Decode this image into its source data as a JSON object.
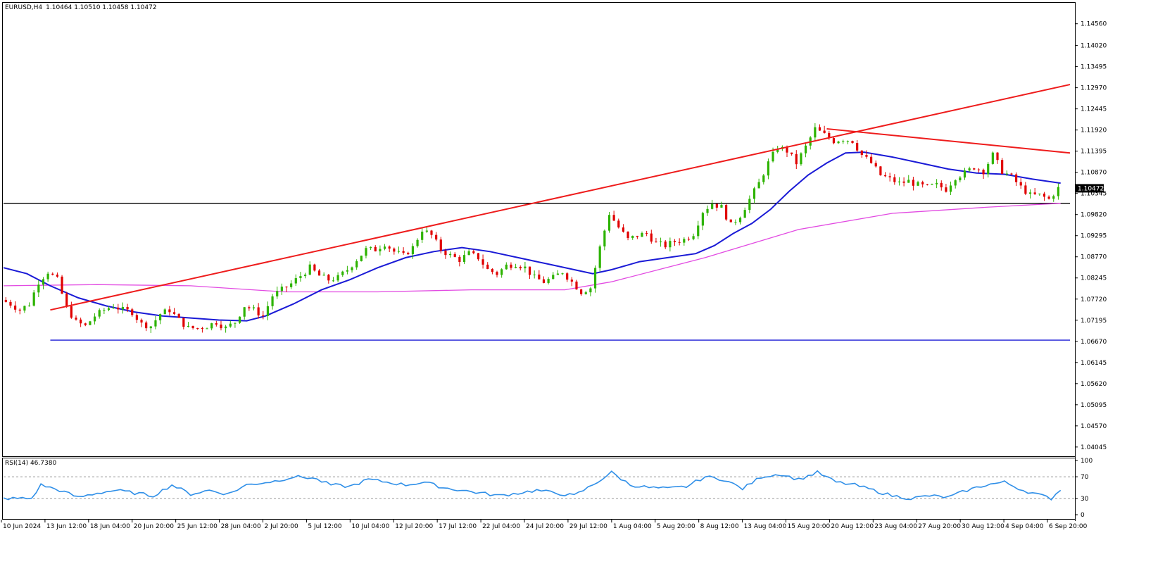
{
  "header": {
    "symbol_timeframe": "EURUSD,H4",
    "ohlc": "1.10464 1.10510 1.10458 1.10472"
  },
  "rsi_header": "RSI(14) 46.7380",
  "colors": {
    "bull": "#2db300",
    "bear": "#e00000",
    "ma_fast": "#1a1ad6",
    "ma_slow": "#e24be2",
    "trend": "#ee1c1c",
    "support": "#1a1ad6",
    "horizontal": "#000000",
    "rsi": "#2f8fe8",
    "price_tag_bg": "#000000"
  },
  "chart_data": [
    {
      "type": "candlestick",
      "name": "main",
      "symbol": "EURUSD",
      "timeframe": "H4",
      "ylim": [
        1.0385,
        1.1487
      ],
      "y_ticks": [
        "1.14560",
        "1.14020",
        "1.13495",
        "1.12970",
        "1.12445",
        "1.11920",
        "1.11395",
        "1.10870",
        "1.10345",
        "1.09820",
        "1.09295",
        "1.08770",
        "1.08245",
        "1.07720",
        "1.07195",
        "1.06670",
        "1.06145",
        "1.05620",
        "1.05095",
        "1.04570",
        "1.04045"
      ],
      "current_price": "1.10472",
      "x_ticks": [
        "10 Jun 2024",
        "13 Jun 12:00",
        "18 Jun 04:00",
        "20 Jun 20:00",
        "25 Jun 12:00",
        "28 Jun 04:00",
        "2 Jul 20:00",
        "5 Jul 12:00",
        "10 Jul 04:00",
        "12 Jul 20:00",
        "17 Jul 12:00",
        "22 Jul 04:00",
        "24 Jul 20:00",
        "29 Jul 12:00",
        "1 Aug 04:00",
        "5 Aug 20:00",
        "8 Aug 12:00",
        "13 Aug 04:00",
        "15 Aug 20:00",
        "20 Aug 12:00",
        "23 Aug 04:00",
        "27 Aug 20:00",
        "30 Aug 12:00",
        "4 Sep 04:00",
        "6 Sep 20:00"
      ],
      "close_path": [
        [
          0,
          1.077
        ],
        [
          2,
          1.076
        ],
        [
          4,
          1.0745
        ],
        [
          6,
          1.076
        ],
        [
          8,
          1.0815
        ],
        [
          10,
          1.084
        ],
        [
          12,
          1.082
        ],
        [
          14,
          1.075
        ],
        [
          16,
          1.0715
        ],
        [
          18,
          1.0705
        ],
        [
          20,
          1.073
        ],
        [
          22,
          1.0745
        ],
        [
          24,
          1.0755
        ],
        [
          26,
          1.0745
        ],
        [
          28,
          1.074
        ],
        [
          30,
          1.071
        ],
        [
          32,
          1.0705
        ],
        [
          34,
          1.0735
        ],
        [
          36,
          1.0745
        ],
        [
          38,
          1.072
        ],
        [
          40,
          1.07
        ],
        [
          42,
          1.07
        ],
        [
          44,
          1.0705
        ],
        [
          46,
          1.0715
        ],
        [
          48,
          1.07
        ],
        [
          50,
          1.0715
        ],
        [
          52,
          1.0755
        ],
        [
          54,
          1.0745
        ],
        [
          56,
          1.073
        ],
        [
          58,
          1.078
        ],
        [
          60,
          1.0795
        ],
        [
          62,
          1.081
        ],
        [
          64,
          1.083
        ],
        [
          66,
          1.085
        ],
        [
          68,
          1.083
        ],
        [
          70,
          1.082
        ],
        [
          72,
          1.0825
        ],
        [
          74,
          1.0845
        ],
        [
          76,
          1.087
        ],
        [
          78,
          1.0895
        ],
        [
          80,
          1.0895
        ],
        [
          82,
          1.091
        ],
        [
          84,
          1.089
        ],
        [
          86,
          1.088
        ],
        [
          88,
          1.09
        ],
        [
          90,
          1.0945
        ],
        [
          92,
          1.093
        ],
        [
          94,
          1.0895
        ],
        [
          96,
          1.088
        ],
        [
          98,
          1.087
        ],
        [
          100,
          1.0885
        ],
        [
          102,
          1.0875
        ],
        [
          104,
          1.0845
        ],
        [
          106,
          1.0835
        ],
        [
          108,
          1.0855
        ],
        [
          110,
          1.086
        ],
        [
          112,
          1.085
        ],
        [
          114,
          1.0825
        ],
        [
          116,
          1.0815
        ],
        [
          118,
          1.0825
        ],
        [
          120,
          1.084
        ],
        [
          122,
          1.0815
        ],
        [
          124,
          1.079
        ],
        [
          126,
          1.08
        ],
        [
          128,
          1.09
        ],
        [
          130,
          1.0985
        ],
        [
          132,
          1.095
        ],
        [
          134,
          1.092
        ],
        [
          136,
          1.093
        ],
        [
          138,
          1.0935
        ],
        [
          140,
          1.091
        ],
        [
          142,
          1.0905
        ],
        [
          144,
          1.0915
        ],
        [
          146,
          1.092
        ],
        [
          148,
          1.0935
        ],
        [
          150,
          1.099
        ],
        [
          152,
          1.101
        ],
        [
          154,
          1.1
        ],
        [
          156,
          1.0955
        ],
        [
          158,
          1.098
        ],
        [
          160,
          1.102
        ],
        [
          162,
          1.106
        ],
        [
          164,
          1.111
        ],
        [
          166,
          1.115
        ],
        [
          168,
          1.114
        ],
        [
          170,
          1.111
        ],
        [
          172,
          1.115
        ],
        [
          174,
          1.1195
        ],
        [
          176,
          1.118
        ],
        [
          178,
          1.1165
        ],
        [
          180,
          1.117
        ],
        [
          182,
          1.1165
        ],
        [
          184,
          1.113
        ],
        [
          186,
          1.111
        ],
        [
          188,
          1.108
        ],
        [
          190,
          1.107
        ],
        [
          192,
          1.106
        ],
        [
          194,
          1.1065
        ],
        [
          196,
          1.1055
        ],
        [
          198,
          1.105
        ],
        [
          200,
          1.1055
        ],
        [
          202,
          1.1045
        ],
        [
          204,
          1.1075
        ],
        [
          206,
          1.1085
        ],
        [
          208,
          1.11
        ],
        [
          210,
          1.109
        ],
        [
          212,
          1.113
        ],
        [
          214,
          1.109
        ],
        [
          216,
          1.1075
        ],
        [
          218,
          1.105
        ],
        [
          220,
          1.103
        ],
        [
          222,
          1.103
        ],
        [
          224,
          1.102
        ],
        [
          226,
          1.1047
        ]
      ],
      "ma_fast_path": [
        [
          0,
          1.085
        ],
        [
          5,
          1.0835
        ],
        [
          10,
          1.0805
        ],
        [
          16,
          1.0775
        ],
        [
          22,
          1.0755
        ],
        [
          28,
          1.074
        ],
        [
          34,
          1.073
        ],
        [
          40,
          1.0725
        ],
        [
          46,
          1.072
        ],
        [
          52,
          1.0718
        ],
        [
          56,
          1.073
        ],
        [
          62,
          1.076
        ],
        [
          68,
          1.0795
        ],
        [
          74,
          1.082
        ],
        [
          80,
          1.085
        ],
        [
          86,
          1.0875
        ],
        [
          92,
          1.089
        ],
        [
          98,
          1.09
        ],
        [
          104,
          1.089
        ],
        [
          110,
          1.0875
        ],
        [
          116,
          1.086
        ],
        [
          122,
          1.0845
        ],
        [
          126,
          1.0835
        ],
        [
          130,
          1.0845
        ],
        [
          136,
          1.0865
        ],
        [
          142,
          1.0875
        ],
        [
          148,
          1.0885
        ],
        [
          152,
          1.0905
        ],
        [
          156,
          1.0935
        ],
        [
          160,
          1.096
        ],
        [
          164,
          1.0995
        ],
        [
          168,
          1.104
        ],
        [
          172,
          1.108
        ],
        [
          176,
          1.111
        ],
        [
          180,
          1.1135
        ],
        [
          184,
          1.1137
        ],
        [
          190,
          1.1125
        ],
        [
          196,
          1.111
        ],
        [
          202,
          1.1095
        ],
        [
          208,
          1.1085
        ],
        [
          214,
          1.1082
        ],
        [
          220,
          1.107
        ],
        [
          226,
          1.106
        ]
      ],
      "ma_slow_path": [
        [
          0,
          1.0805
        ],
        [
          20,
          1.0808
        ],
        [
          40,
          1.0805
        ],
        [
          60,
          1.079
        ],
        [
          80,
          1.079
        ],
        [
          100,
          1.0795
        ],
        [
          120,
          1.0795
        ],
        [
          130,
          1.0815
        ],
        [
          150,
          1.0875
        ],
        [
          170,
          1.0945
        ],
        [
          190,
          1.0985
        ],
        [
          210,
          1.1
        ],
        [
          226,
          1.101
        ]
      ],
      "trend_lines": [
        {
          "from": [
            10,
            1.0745
          ],
          "to": [
            228,
            1.1305
          ]
        },
        {
          "from": [
            176,
            1.1195
          ],
          "to": [
            228,
            1.1135
          ]
        }
      ],
      "horizontal_levels": [
        {
          "value": 1.101,
          "from_index": 0,
          "to_index": 228
        },
        {
          "value": 1.067,
          "from_index": 10,
          "to_index": 228
        }
      ]
    },
    {
      "type": "line",
      "name": "rsi",
      "label": "RSI(14) 46.7380",
      "ylim": [
        0,
        100
      ],
      "y_ticks": [
        "100",
        "70",
        "30",
        "0"
      ],
      "levels": [
        70,
        30
      ],
      "values": [
        [
          0,
          30
        ],
        [
          6,
          30
        ],
        [
          8,
          55
        ],
        [
          12,
          45
        ],
        [
          16,
          32
        ],
        [
          20,
          40
        ],
        [
          24,
          45
        ],
        [
          28,
          40
        ],
        [
          32,
          35
        ],
        [
          36,
          55
        ],
        [
          40,
          38
        ],
        [
          44,
          45
        ],
        [
          48,
          38
        ],
        [
          52,
          55
        ],
        [
          58,
          62
        ],
        [
          62,
          70
        ],
        [
          66,
          68
        ],
        [
          70,
          55
        ],
        [
          74,
          52
        ],
        [
          78,
          65
        ],
        [
          82,
          60
        ],
        [
          86,
          55
        ],
        [
          90,
          60
        ],
        [
          94,
          50
        ],
        [
          98,
          45
        ],
        [
          102,
          40
        ],
        [
          106,
          35
        ],
        [
          110,
          40
        ],
        [
          114,
          45
        ],
        [
          118,
          40
        ],
        [
          122,
          35
        ],
        [
          126,
          55
        ],
        [
          130,
          78
        ],
        [
          134,
          55
        ],
        [
          138,
          50
        ],
        [
          142,
          48
        ],
        [
          146,
          52
        ],
        [
          150,
          70
        ],
        [
          154,
          65
        ],
        [
          158,
          48
        ],
        [
          162,
          70
        ],
        [
          166,
          75
        ],
        [
          170,
          65
        ],
        [
          174,
          78
        ],
        [
          178,
          60
        ],
        [
          182,
          55
        ],
        [
          186,
          45
        ],
        [
          190,
          35
        ],
        [
          194,
          30
        ],
        [
          198,
          35
        ],
        [
          202,
          32
        ],
        [
          206,
          45
        ],
        [
          210,
          55
        ],
        [
          214,
          60
        ],
        [
          218,
          45
        ],
        [
          222,
          35
        ],
        [
          224,
          30
        ],
        [
          226,
          47
        ]
      ]
    }
  ]
}
